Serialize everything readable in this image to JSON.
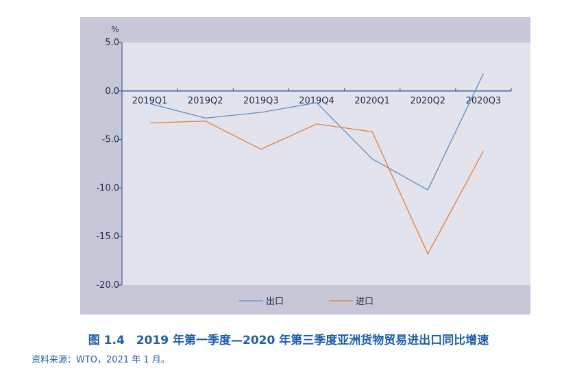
{
  "chart_data": {
    "type": "line",
    "title": "",
    "ylabel": "%",
    "xlabel": "",
    "ylim": [
      -20,
      5
    ],
    "yticks": [
      5,
      0,
      -5,
      -10,
      -15,
      -20
    ],
    "ytick_labels": [
      "5.0",
      "0.0",
      "-5.0",
      "-10.0",
      "-15.0",
      "-20.0"
    ],
    "categories": [
      "2019Q1",
      "2019Q2",
      "2019Q3",
      "2019Q4",
      "2020Q1",
      "2020Q2",
      "2020Q3"
    ],
    "series": [
      {
        "name": "出口",
        "values": [
          -1.3,
          -2.8,
          -2.2,
          -1.2,
          -7.0,
          -10.2,
          1.8
        ],
        "color": "#5b8fc7"
      },
      {
        "name": "进口",
        "values": [
          -3.3,
          -3.1,
          -6.0,
          -3.4,
          -4.2,
          -16.8,
          -6.2
        ],
        "color": "#ed7d31"
      }
    ],
    "grid": false,
    "legend_position": "bottom",
    "colors": {
      "outer_bg": "#c7c7d8",
      "plot_bg": "#e2e3ec",
      "axis": "#3a5f9a",
      "label": "#1f2a4a"
    }
  },
  "caption": "图 1.4　2019 年第一季度—2020 年第三季度亚洲货物贸易进出口同比增速",
  "source": "资料来源：WTO，2021 年 1 月。"
}
